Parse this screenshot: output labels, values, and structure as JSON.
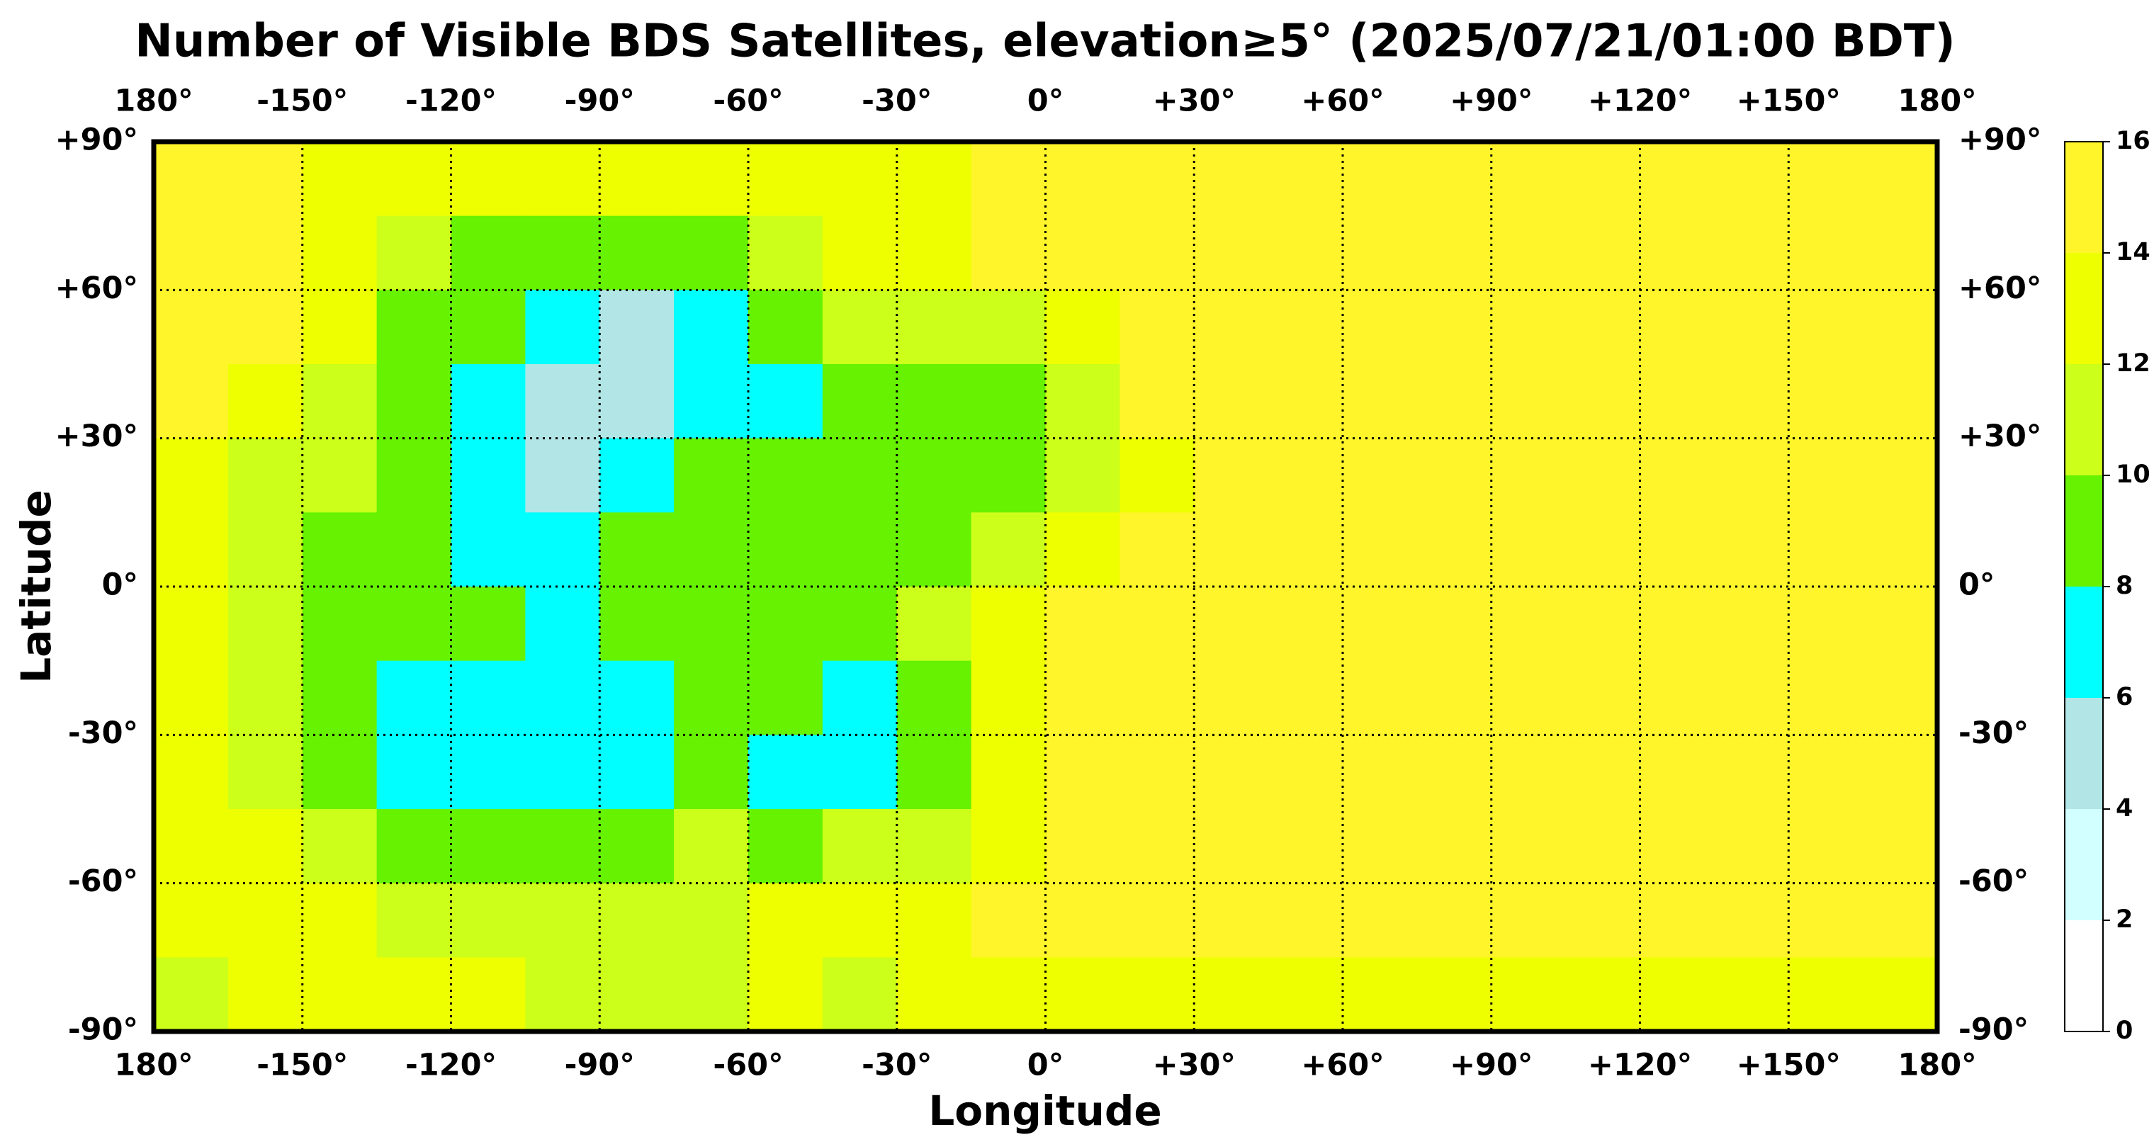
{
  "chart_data": {
    "type": "heatmap",
    "title": "Number of Visible BDS Satellites, elevation≥5° (2025/07/21/01:00 BDT)",
    "x_label": "Longitude",
    "y_label": "Latitude",
    "xlim": [
      -180,
      180
    ],
    "ylim": [
      -90,
      90
    ],
    "xticks": [
      {
        "value": -180,
        "label": "180°"
      },
      {
        "value": -150,
        "label": "-150°"
      },
      {
        "value": -120,
        "label": "-120°"
      },
      {
        "value": -90,
        "label": "-90°"
      },
      {
        "value": -60,
        "label": "-60°"
      },
      {
        "value": -30,
        "label": "-30°"
      },
      {
        "value": 0,
        "label": "0°"
      },
      {
        "value": 30,
        "label": "+30°"
      },
      {
        "value": 60,
        "label": "+60°"
      },
      {
        "value": 90,
        "label": "+90°"
      },
      {
        "value": 120,
        "label": "+120°"
      },
      {
        "value": 150,
        "label": "+150°"
      },
      {
        "value": 180,
        "label": "180°"
      }
    ],
    "yticks": [
      {
        "value": 90,
        "label": "+90°"
      },
      {
        "value": 60,
        "label": "+60°"
      },
      {
        "value": 30,
        "label": "+30°"
      },
      {
        "value": 0,
        "label": "0°"
      },
      {
        "value": -30,
        "label": "-30°"
      },
      {
        "value": -60,
        "label": "-60°"
      },
      {
        "value": -90,
        "label": "-90°"
      }
    ],
    "grid": true,
    "lon_bins": [
      -180,
      -165,
      -150,
      -135,
      -120,
      -105,
      -90,
      -75,
      -60,
      -45,
      -30,
      -15,
      0,
      15,
      30,
      45,
      60,
      75,
      90,
      105,
      120,
      135,
      150,
      165,
      180
    ],
    "lat_bins": [
      90,
      75,
      60,
      45,
      30,
      15,
      0,
      -15,
      -30,
      -45,
      -60,
      -75,
      -90
    ],
    "values": [
      [
        15,
        15,
        13,
        13,
        13,
        13,
        13,
        13,
        13,
        13,
        13,
        15,
        15,
        15,
        15,
        15,
        15,
        15,
        15,
        15,
        15,
        15,
        15,
        15
      ],
      [
        15,
        15,
        13,
        11,
        9,
        9,
        9,
        9,
        11,
        13,
        13,
        15,
        15,
        15,
        15,
        15,
        15,
        15,
        15,
        15,
        15,
        15,
        15,
        15
      ],
      [
        15,
        15,
        13,
        9,
        9,
        7,
        5,
        7,
        9,
        11,
        11,
        11,
        13,
        15,
        15,
        15,
        15,
        15,
        15,
        15,
        15,
        15,
        15,
        15
      ],
      [
        15,
        13,
        11,
        9,
        7,
        5,
        5,
        7,
        7,
        9,
        9,
        9,
        11,
        15,
        15,
        15,
        15,
        15,
        15,
        15,
        15,
        15,
        15,
        15
      ],
      [
        13,
        11,
        11,
        9,
        7,
        5,
        7,
        9,
        9,
        9,
        9,
        9,
        11,
        13,
        15,
        15,
        15,
        15,
        15,
        15,
        15,
        15,
        15,
        15
      ],
      [
        13,
        11,
        9,
        9,
        7,
        7,
        9,
        9,
        9,
        9,
        9,
        11,
        13,
        15,
        15,
        15,
        15,
        15,
        15,
        15,
        15,
        15,
        15,
        15
      ],
      [
        13,
        11,
        9,
        9,
        9,
        7,
        9,
        9,
        9,
        9,
        11,
        13,
        15,
        15,
        15,
        15,
        15,
        15,
        15,
        15,
        15,
        15,
        15,
        15
      ],
      [
        13,
        11,
        9,
        7,
        7,
        7,
        7,
        9,
        9,
        7,
        9,
        13,
        15,
        15,
        15,
        15,
        15,
        15,
        15,
        15,
        15,
        15,
        15,
        15
      ],
      [
        13,
        11,
        9,
        7,
        7,
        7,
        7,
        9,
        7,
        7,
        9,
        13,
        15,
        15,
        15,
        15,
        15,
        15,
        15,
        15,
        15,
        15,
        15,
        15
      ],
      [
        13,
        13,
        11,
        9,
        9,
        9,
        9,
        11,
        9,
        11,
        11,
        13,
        15,
        15,
        15,
        15,
        15,
        15,
        15,
        15,
        15,
        15,
        15,
        15
      ],
      [
        13,
        13,
        13,
        11,
        11,
        11,
        11,
        11,
        13,
        13,
        13,
        15,
        15,
        15,
        15,
        15,
        15,
        15,
        15,
        15,
        15,
        15,
        15,
        15
      ],
      [
        11,
        13,
        13,
        13,
        13,
        11,
        11,
        11,
        13,
        11,
        13,
        13,
        13,
        13,
        13,
        13,
        13,
        13,
        13,
        13,
        13,
        13,
        13,
        13
      ]
    ],
    "colorbar": {
      "levels": [
        0,
        2,
        4,
        6,
        8,
        10,
        12,
        14,
        16
      ],
      "colors": [
        "#ffffff",
        "#d2ffff",
        "#b2e6e6",
        "#00ffff",
        "#66f200",
        "#ccff1a",
        "#eeff00",
        "#fff52a"
      ]
    }
  }
}
